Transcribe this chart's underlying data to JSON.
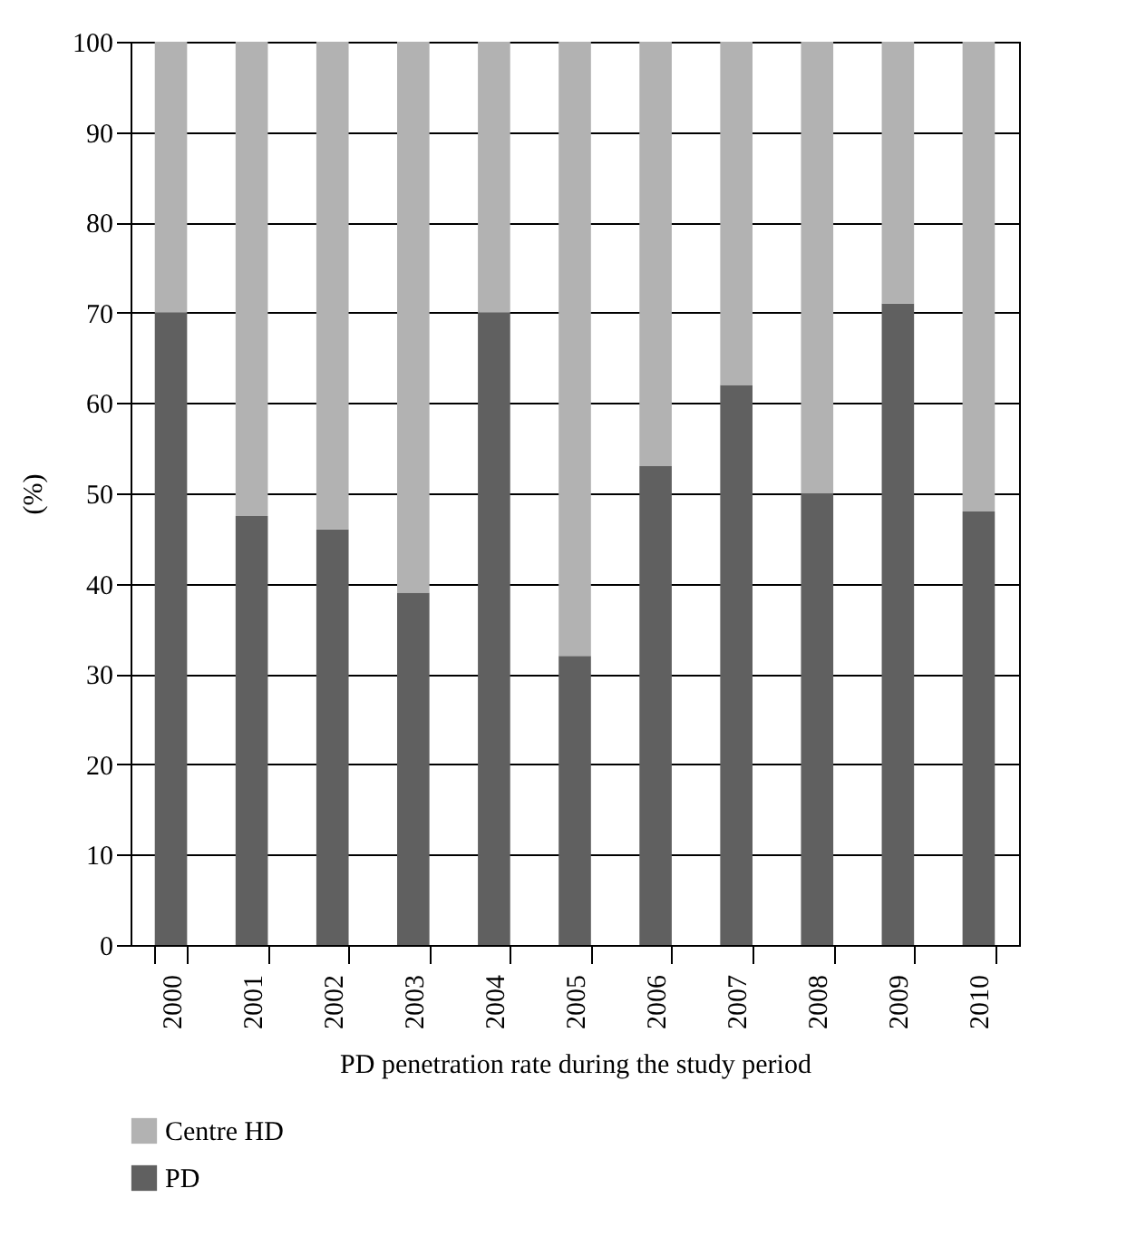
{
  "chart_data": {
    "type": "bar",
    "stacked": true,
    "xlabel": "PD penetration rate during the study period",
    "ylabel": "(%)",
    "categories": [
      "2000",
      "2001",
      "2002",
      "2003",
      "2004",
      "2005",
      "2006",
      "2007",
      "2008",
      "2009",
      "2010"
    ],
    "series": [
      {
        "name": "PD",
        "color": "#606060",
        "values": [
          70,
          47.5,
          46,
          39,
          70,
          32,
          53,
          62,
          50,
          71,
          48
        ]
      },
      {
        "name": "Centre HD",
        "color": "#b2b2b2",
        "values": [
          30,
          52.5,
          54,
          61,
          30,
          68,
          47,
          38,
          50,
          29,
          52
        ]
      }
    ],
    "ylim": [
      0,
      100
    ],
    "yticks": [
      0,
      10,
      20,
      30,
      40,
      50,
      60,
      70,
      80,
      90,
      100
    ],
    "grid": "y",
    "legend": "bottom left"
  }
}
